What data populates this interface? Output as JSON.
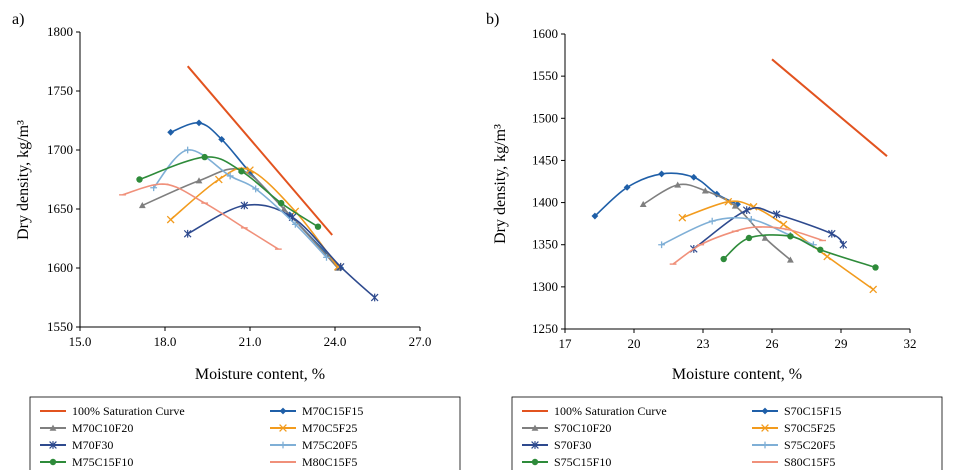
{
  "colors": {
    "saturation": "#E2531F",
    "c15f15": "#1F5FA8",
    "c10f20": "#7F7F7F",
    "c5f25": "#F29B1D",
    "f30": "#2E4A8E",
    "c20f5": "#7FAFD6",
    "c15f10": "#2E8B3A",
    "c15f5": "#F0907A"
  },
  "chart_data": [
    {
      "panel": "a)",
      "type": "line",
      "xlabel": "Moisture content, %",
      "ylabel": "Dry density, kg/m³",
      "xlim": [
        15,
        27
      ],
      "ylim": [
        1550,
        1800
      ],
      "xticks": [
        "15.0",
        "18.0",
        "21.0",
        "24.0",
        "27.0"
      ],
      "yticks": [
        "1550",
        "1600",
        "1650",
        "1700",
        "1750",
        "1800"
      ],
      "series": [
        {
          "name": "100% Saturation Curve",
          "color_key": "saturation",
          "marker": "none",
          "smooth": false,
          "x": [
            18.8,
            23.9
          ],
          "y": [
            1771,
            1628
          ]
        },
        {
          "name": "M70C15F15",
          "color_key": "c15f15",
          "marker": "diamond",
          "smooth": true,
          "x": [
            18.2,
            19.2,
            20.0,
            21.0,
            22.4,
            24.2
          ],
          "y": [
            1715,
            1723,
            1709,
            1681,
            1645,
            1600
          ]
        },
        {
          "name": "M70C10F20",
          "color_key": "c10f20",
          "marker": "triangle",
          "smooth": true,
          "x": [
            17.2,
            19.2,
            20.7,
            22.2,
            24.1
          ],
          "y": [
            1653,
            1674,
            1683,
            1650,
            1600
          ]
        },
        {
          "name": "M70C5F25",
          "color_key": "c5f25",
          "marker": "x",
          "smooth": true,
          "x": [
            18.2,
            19.9,
            21.0,
            22.6,
            24.1
          ],
          "y": [
            1641,
            1675,
            1683,
            1648,
            1601
          ]
        },
        {
          "name": "M70F30",
          "color_key": "f30",
          "marker": "star",
          "smooth": true,
          "x": [
            18.8,
            20.8,
            22.5,
            24.2,
            25.4
          ],
          "y": [
            1629,
            1653,
            1643,
            1601,
            1575
          ]
        },
        {
          "name": "M75C20F5",
          "color_key": "c20f5",
          "marker": "plus",
          "smooth": true,
          "x": [
            17.6,
            18.8,
            20.3,
            21.2,
            22.6,
            23.7
          ],
          "y": [
            1668,
            1700,
            1678,
            1667,
            1637,
            1609
          ]
        },
        {
          "name": "M75C15F10",
          "color_key": "c15f10",
          "marker": "circle",
          "smooth": true,
          "x": [
            17.1,
            19.4,
            20.7,
            22.1,
            23.4
          ],
          "y": [
            1675,
            1694,
            1682,
            1655,
            1635
          ]
        },
        {
          "name": "M80C15F5",
          "color_key": "c15f5",
          "marker": "dash",
          "smooth": true,
          "x": [
            16.5,
            18.0,
            19.4,
            20.8,
            22.0
          ],
          "y": [
            1662,
            1671,
            1655,
            1634,
            1616
          ]
        }
      ]
    },
    {
      "panel": "b)",
      "type": "line",
      "xlabel": "Moisture content, %",
      "ylabel": "Dry density, kg/m³",
      "xlim": [
        17,
        32
      ],
      "ylim": [
        1250,
        1600
      ],
      "xticks": [
        "17",
        "20",
        "23",
        "26",
        "29",
        "32"
      ],
      "yticks": [
        "1250",
        "1300",
        "1350",
        "1400",
        "1450",
        "1500",
        "1550",
        "1600"
      ],
      "series": [
        {
          "name": "100% Saturation Curve",
          "color_key": "saturation",
          "marker": "none",
          "smooth": false,
          "x": [
            26.0,
            31.0
          ],
          "y": [
            1570,
            1455
          ]
        },
        {
          "name": "S70C15F15",
          "color_key": "c15f15",
          "marker": "diamond",
          "smooth": true,
          "x": [
            18.3,
            19.7,
            21.2,
            22.6,
            23.6,
            24.5
          ],
          "y": [
            1384,
            1418,
            1434,
            1430,
            1410,
            1398
          ]
        },
        {
          "name": "S70C10F20",
          "color_key": "c10f20",
          "marker": "triangle",
          "smooth": true,
          "x": [
            20.4,
            21.9,
            23.1,
            24.4,
            25.7,
            26.8
          ],
          "y": [
            1398,
            1421,
            1414,
            1396,
            1358,
            1332
          ]
        },
        {
          "name": "S70C5F25",
          "color_key": "c5f25",
          "marker": "x",
          "smooth": true,
          "x": [
            22.1,
            24.1,
            25.2,
            26.5,
            28.4,
            30.4
          ],
          "y": [
            1382,
            1401,
            1395,
            1374,
            1336,
            1297
          ]
        },
        {
          "name": "S70F30",
          "color_key": "f30",
          "marker": "star",
          "smooth": true,
          "x": [
            22.6,
            24.9,
            26.2,
            28.6,
            29.1
          ],
          "y": [
            1345,
            1391,
            1386,
            1363,
            1350
          ]
        },
        {
          "name": "S75C20F5",
          "color_key": "c20f5",
          "marker": "plus",
          "smooth": true,
          "x": [
            21.2,
            23.4,
            25.1,
            26.8,
            27.8
          ],
          "y": [
            1350,
            1378,
            1380,
            1361,
            1350
          ]
        },
        {
          "name": "S75C15F10",
          "color_key": "c15f10",
          "marker": "circle",
          "smooth": true,
          "x": [
            23.9,
            25.0,
            26.8,
            28.1,
            30.5
          ],
          "y": [
            1333,
            1358,
            1360,
            1344,
            1323
          ]
        },
        {
          "name": "S80C15F5",
          "color_key": "c15f5",
          "marker": "dash",
          "smooth": true,
          "x": [
            21.7,
            22.9,
            24.4,
            25.4,
            26.7,
            28.2
          ],
          "y": [
            1327,
            1350,
            1366,
            1371,
            1368,
            1355
          ]
        }
      ]
    }
  ]
}
